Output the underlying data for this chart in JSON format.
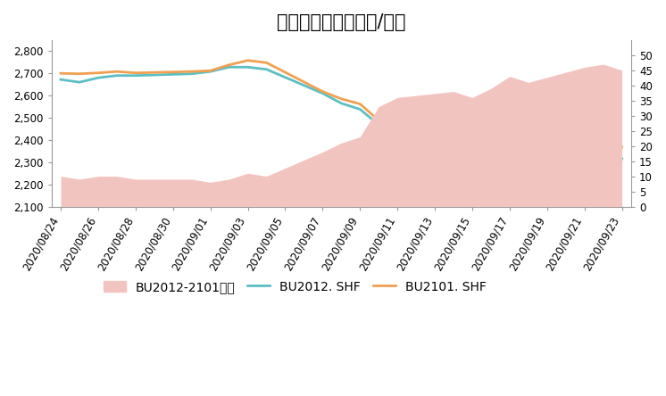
{
  "title": "氥青近远月价差（元/吨）",
  "dates": [
    "2020/08/24",
    "2020/08/25",
    "2020/08/26",
    "2020/08/27",
    "2020/08/28",
    "2020/08/31",
    "2020/09/01",
    "2020/09/02",
    "2020/09/03",
    "2020/09/04",
    "2020/09/07",
    "2020/09/08",
    "2020/09/09",
    "2020/09/10",
    "2020/09/11",
    "2020/09/14",
    "2020/09/15",
    "2020/09/16",
    "2020/09/17",
    "2020/09/18",
    "2020/09/21",
    "2020/09/22",
    "2020/09/23"
  ],
  "bu2012": [
    2672,
    2660,
    2680,
    2690,
    2690,
    2698,
    2708,
    2728,
    2728,
    2718,
    2610,
    2565,
    2538,
    2468,
    2458,
    2458,
    2445,
    2435,
    2415,
    2428,
    2428,
    2338,
    2315
  ],
  "bu2101": [
    2700,
    2698,
    2702,
    2708,
    2702,
    2708,
    2712,
    2738,
    2758,
    2748,
    2618,
    2585,
    2562,
    2488,
    2478,
    2490,
    2478,
    2468,
    2458,
    2468,
    2472,
    2382,
    2368
  ],
  "spread": [
    10,
    9,
    10,
    10,
    9,
    9,
    8,
    9,
    11,
    10,
    18,
    21,
    23,
    33,
    36,
    38,
    36,
    39,
    43,
    41,
    46,
    47,
    45
  ],
  "bu2012_color": "#5bbfc4",
  "bu2101_color": "#f0a050",
  "spread_fill_color": "#f2c4c0",
  "left_ylim": [
    2100,
    2850
  ],
  "left_yticks": [
    2100,
    2200,
    2300,
    2400,
    2500,
    2600,
    2700,
    2800
  ],
  "right_ylim": [
    0,
    55
  ],
  "right_yticks": [
    0,
    5,
    10,
    15,
    20,
    25,
    30,
    35,
    40,
    45,
    50
  ],
  "all_tick_dates": [
    "2020/08/24",
    "2020/08/26",
    "2020/08/28",
    "2020/08/30",
    "2020/09/01",
    "2020/09/03",
    "2020/09/05",
    "2020/09/07",
    "2020/09/09",
    "2020/09/11",
    "2020/09/13",
    "2020/09/15",
    "2020/09/17",
    "2020/09/19",
    "2020/09/21",
    "2020/09/23"
  ],
  "legend_labels": [
    "BU2012-2101价差",
    "BU2012. SHF",
    "BU2101. SHF"
  ],
  "title_fontsize": 15,
  "tick_fontsize": 8.5,
  "legend_fontsize": 10
}
